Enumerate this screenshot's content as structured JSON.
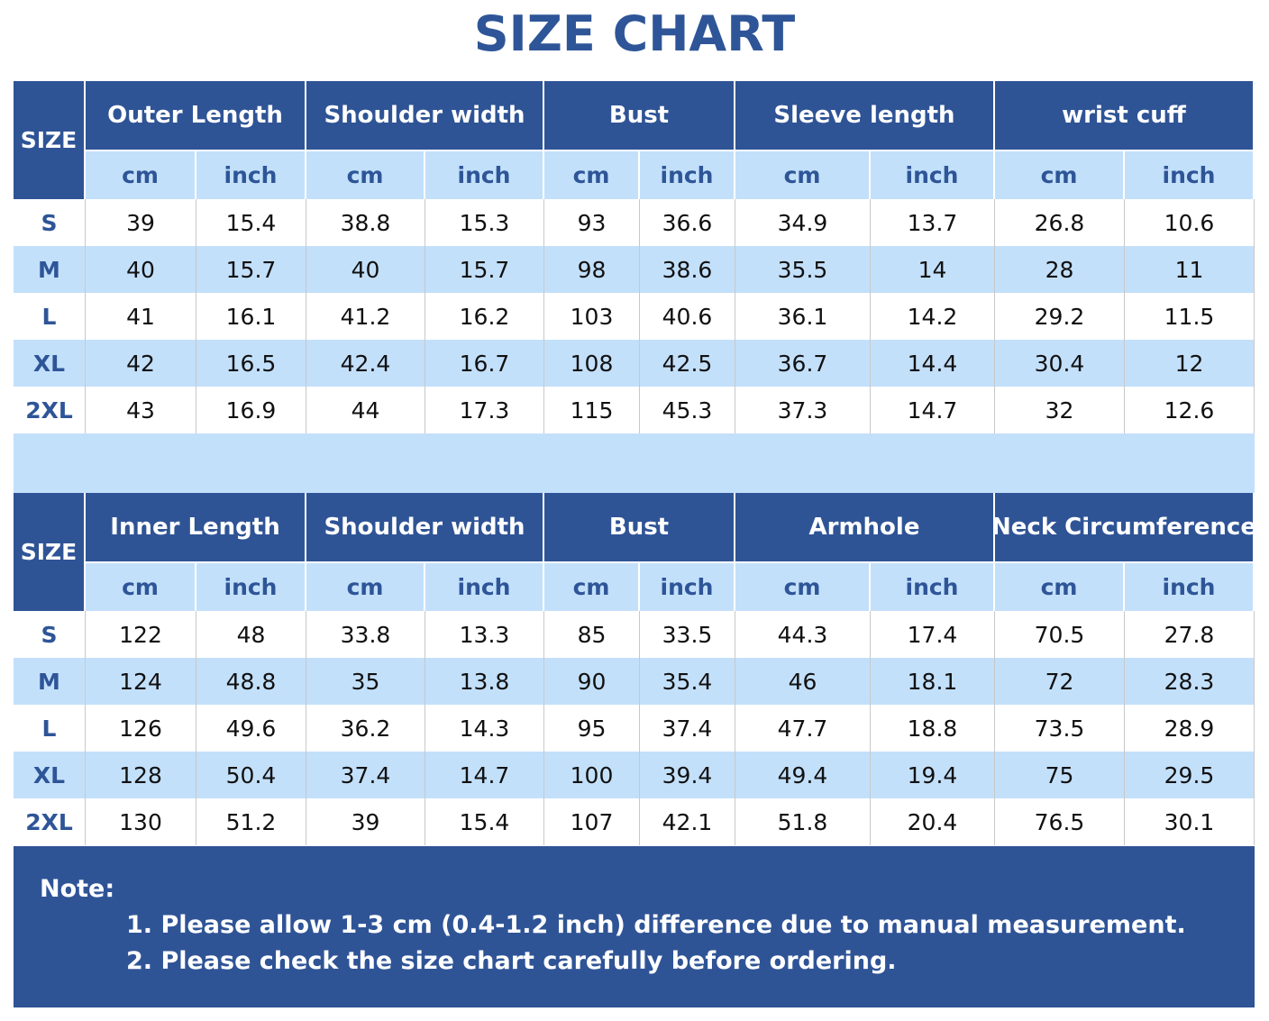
{
  "title": "SIZE CHART",
  "tables": [
    {
      "size_header": "SIZE",
      "groups": [
        "Outer Length",
        "Shoulder width",
        "Bust",
        "Sleeve length",
        "wrist cuff"
      ],
      "units": [
        "cm",
        "inch",
        "cm",
        "inch",
        "cm",
        "inch",
        "cm",
        "inch",
        "cm",
        "inch"
      ],
      "rows": [
        {
          "size": "S",
          "values": [
            39,
            15.4,
            38.8,
            15.3,
            93,
            36.6,
            34.9,
            13.7,
            26.8,
            10.6
          ]
        },
        {
          "size": "M",
          "values": [
            40,
            15.7,
            40,
            15.7,
            98,
            38.6,
            35.5,
            14,
            28,
            11
          ]
        },
        {
          "size": "L",
          "values": [
            41,
            16.1,
            41.2,
            16.2,
            103,
            40.6,
            36.1,
            14.2,
            29.2,
            11.5
          ]
        },
        {
          "size": "XL",
          "values": [
            42,
            16.5,
            42.4,
            16.7,
            108,
            42.5,
            36.7,
            14.4,
            30.4,
            12
          ]
        },
        {
          "size": "2XL",
          "values": [
            43,
            16.9,
            44,
            17.3,
            115,
            45.3,
            37.3,
            14.7,
            32,
            12.6
          ]
        }
      ]
    },
    {
      "size_header": "SIZE",
      "groups": [
        "Inner Length",
        "Shoulder width",
        "Bust",
        "Armhole",
        "Neck Circumference"
      ],
      "units": [
        "cm",
        "inch",
        "cm",
        "inch",
        "cm",
        "inch",
        "cm",
        "inch",
        "cm",
        "inch"
      ],
      "rows": [
        {
          "size": "S",
          "values": [
            122,
            48,
            33.8,
            13.3,
            85,
            33.5,
            44.3,
            17.4,
            70.5,
            27.8
          ]
        },
        {
          "size": "M",
          "values": [
            124,
            48.8,
            35,
            13.8,
            90,
            35.4,
            46,
            18.1,
            72,
            28.3
          ]
        },
        {
          "size": "L",
          "values": [
            126,
            49.6,
            36.2,
            14.3,
            95,
            37.4,
            47.7,
            18.8,
            73.5,
            28.9
          ]
        },
        {
          "size": "XL",
          "values": [
            128,
            50.4,
            37.4,
            14.7,
            100,
            39.4,
            49.4,
            19.4,
            75,
            29.5
          ]
        },
        {
          "size": "2XL",
          "values": [
            130,
            51.2,
            39,
            15.4,
            107,
            42.1,
            51.8,
            20.4,
            76.5,
            30.1
          ]
        }
      ]
    }
  ],
  "note": {
    "label": "Note:",
    "lines": [
      "1. Please allow 1-3 cm (0.4-1.2 inch) difference due to manual measurement.",
      "2. Please check the size chart carefully before ordering."
    ]
  }
}
